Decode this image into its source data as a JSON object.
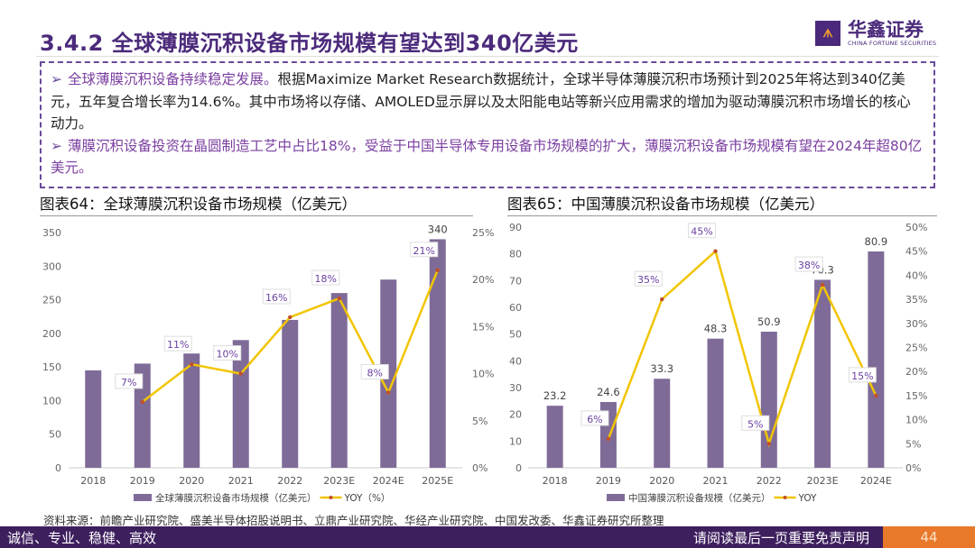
{
  "header": {
    "title": "3.4.2 全球薄膜沉积设备市场规模有望达到340亿美元",
    "logo_cn": "华鑫证券",
    "logo_en": "CHINA FORTUNE SECURITIES"
  },
  "bullets": [
    {
      "lead": "全球薄膜沉积设备持续稳定发展。",
      "text": "根据Maximize Market Research数据统计，全球半导体薄膜沉积市场预计到2025年将达到340亿美元，五年复合增长率为14.6%。其中市场将以存储、AMOLED显示屏以及太阳能电站等新兴应用需求的增加为驱动薄膜沉积市场增长的核心动力。"
    },
    {
      "lead": "薄膜沉积设备投资在晶圆制造工艺中占比18%，受益于中国半导体专用设备市场规模的扩大，薄膜沉积设备市场规模有望在2024年超80亿美元。",
      "text": ""
    }
  ],
  "colors": {
    "bar": "#7f6b98",
    "line": "#f2c500",
    "marker": "#c0502a",
    "accent": "#4b2a7b",
    "footer": "#3e1f5e",
    "page": "#e8792a"
  },
  "chart_data": [
    {
      "type": "bar+line",
      "title": "图表64：全球薄膜沉积设备市场规模（亿美元）",
      "categories": [
        "2018",
        "2019",
        "2020",
        "2021",
        "2022",
        "2023E",
        "2024E",
        "2025E"
      ],
      "series": [
        {
          "name": "全球薄膜沉积设备市场规模（亿美元）",
          "type": "bar",
          "axis": "left",
          "values": [
            145,
            155,
            170,
            190,
            220,
            260,
            280,
            340
          ],
          "labels": [
            null,
            null,
            null,
            null,
            null,
            null,
            null,
            "340"
          ]
        },
        {
          "name": "YOY（%）",
          "type": "line",
          "axis": "right",
          "values": [
            null,
            7,
            11,
            10,
            16,
            18,
            8,
            21
          ],
          "labels": [
            null,
            "7%",
            "11%",
            "10%",
            "16%",
            "18%",
            "8%",
            "21%"
          ]
        }
      ],
      "ylim": [
        0,
        350
      ],
      "yticks": [
        0,
        50,
        100,
        150,
        200,
        250,
        300,
        350
      ],
      "y2lim": [
        0,
        25
      ],
      "y2ticks": [
        "0%",
        "5%",
        "10%",
        "15%",
        "20%",
        "25%"
      ],
      "legend": "bottom"
    },
    {
      "type": "bar+line",
      "title": "图表65：中国薄膜沉积设备市场规模（亿美元）",
      "categories": [
        "2018",
        "2019",
        "2020",
        "2021",
        "2022",
        "2023E",
        "2024E"
      ],
      "series": [
        {
          "name": "中国薄膜沉积设备规模（亿美元）",
          "type": "bar",
          "axis": "left",
          "values": [
            23.2,
            24.6,
            33.3,
            48.3,
            50.9,
            70.3,
            80.9
          ],
          "labels": [
            "23.2",
            "24.6",
            "33.3",
            "48.3",
            "50.9",
            "70.3",
            "80.9"
          ]
        },
        {
          "name": "YOY",
          "type": "line",
          "axis": "right",
          "values": [
            null,
            6,
            35,
            45,
            5,
            38,
            15
          ],
          "labels": [
            null,
            "6%",
            "35%",
            "45%",
            "5%",
            "38%",
            "15%"
          ]
        }
      ],
      "ylim": [
        0,
        90
      ],
      "yticks": [
        0,
        10,
        20,
        30,
        40,
        50,
        60,
        70,
        80,
        90
      ],
      "y2lim": [
        0,
        50
      ],
      "y2ticks": [
        "0%",
        "5%",
        "10%",
        "15%",
        "20%",
        "25%",
        "30%",
        "35%",
        "40%",
        "45%",
        "50%"
      ],
      "legend": "bottom"
    }
  ],
  "source": "资料来源：前瞻产业研究院、盛美半导体招股说明书、立鼎产业研究院、华经产业研究院、中国发改委、华鑫证券研究所整理",
  "footer": {
    "left": "诚信、专业、稳健、高效",
    "right": "请阅读最后一页重要免责声明",
    "page": "44"
  }
}
